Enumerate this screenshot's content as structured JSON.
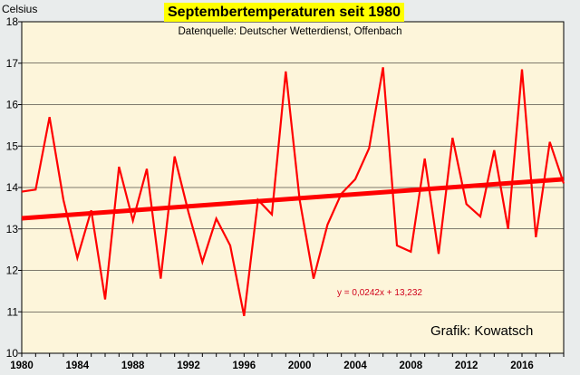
{
  "title": "Septembertemperaturen seit 1980",
  "subtitle": "Datenquelle: Deutscher Wetterdienst, Offenbach",
  "unit_label": "Celsius",
  "credit": "Grafik: Kowatsch",
  "colors": {
    "plot_background": "#fdf5da",
    "frame": "#e9ecec",
    "series": "#ff0000",
    "trend": "#ff0000",
    "title_highlight": "#ffff00",
    "gridline": "#000000"
  },
  "chart_data": {
    "type": "line",
    "title": "Septembertemperaturen seit 1980",
    "subtitle": "Datenquelle: Deutscher Wetterdienst, Offenbach",
    "ylabel": "Celsius",
    "xlim": [
      1980,
      2019
    ],
    "ylim": [
      10,
      18
    ],
    "x_ticks": [
      "1980",
      "1984",
      "1988",
      "1992",
      "1996",
      "2000",
      "2004",
      "2008",
      "2012",
      "2016"
    ],
    "y_ticks": [
      "10",
      "11",
      "12",
      "13",
      "14",
      "15",
      "16",
      "17",
      "18"
    ],
    "grid": "horizontal",
    "series": [
      {
        "x": [
          1980,
          1981,
          1982,
          1983,
          1984,
          1985,
          1986,
          1987,
          1988,
          1989,
          1990,
          1991,
          1992,
          1993,
          1994,
          1995,
          1996,
          1997,
          1998,
          1999,
          2000,
          2001,
          2002,
          2003,
          2004,
          2005,
          2006,
          2007,
          2008,
          2009,
          2010,
          2011,
          2012,
          2013,
          2014,
          2015,
          2016,
          2017,
          2018,
          2019
        ],
        "values": [
          13.9,
          13.95,
          15.7,
          13.7,
          12.3,
          13.45,
          11.3,
          14.5,
          13.2,
          14.45,
          11.8,
          14.75,
          13.4,
          12.2,
          13.25,
          12.6,
          10.9,
          13.7,
          13.35,
          16.8,
          13.7,
          11.8,
          13.1,
          13.85,
          14.2,
          14.95,
          16.9,
          12.6,
          12.45,
          14.7,
          12.4,
          15.2,
          13.6,
          13.3,
          14.9,
          13.0,
          16.85,
          12.8,
          15.1,
          14.1
        ]
      }
    ],
    "trendline": {
      "equation": "y = 0,0242x + 13,232",
      "slope": 0.0242,
      "intercept": 13.232,
      "x_start": 1980,
      "x_end": 2019
    }
  }
}
